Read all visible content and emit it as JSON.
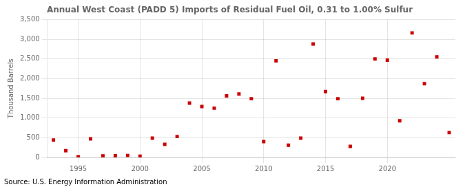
{
  "chart_data": {
    "type": "scatter",
    "title": "Annual West Coast (PADD 5) Imports of Residual Fuel Oil, 0.31 to 1.00% Sulfur",
    "y_label": "Thousand Barrels",
    "annotation": "Source: U.S. Energy Information Administration",
    "x": [
      1993,
      1994,
      1995,
      1996,
      1997,
      1998,
      1999,
      2000,
      2001,
      2002,
      2003,
      2004,
      2005,
      2006,
      2007,
      2008,
      2009,
      2010,
      2011,
      2012,
      2013,
      2014,
      2015,
      2016,
      2017,
      2018,
      2019,
      2020,
      2021,
      2022,
      2023,
      2024,
      2025
    ],
    "values": [
      440,
      170,
      15,
      470,
      40,
      45,
      50,
      30,
      490,
      330,
      530,
      1380,
      1290,
      1250,
      1560,
      1610,
      1490,
      400,
      2450,
      310,
      490,
      2880,
      1670,
      1490,
      280,
      1500,
      2500,
      2470,
      930,
      3160,
      1870,
      2550,
      630
    ],
    "color": "#cc0000",
    "marker": "square",
    "xlim": [
      1992.5,
      2025.5
    ],
    "xticks": [
      1995,
      2000,
      2005,
      2010,
      2015,
      2020
    ],
    "ylim": [
      0,
      3500
    ],
    "yticks": [
      0,
      500,
      {
        "value": 1000,
        "label": "1,000"
      },
      {
        "value": 1500,
        "label": "1,500"
      },
      {
        "value": 2000,
        "label": "2,000"
      },
      {
        "value": 2500,
        "label": "2,500"
      },
      {
        "value": 3000,
        "label": "3,000"
      },
      {
        "value": 3500,
        "label": "3,500"
      }
    ],
    "grid": true
  }
}
